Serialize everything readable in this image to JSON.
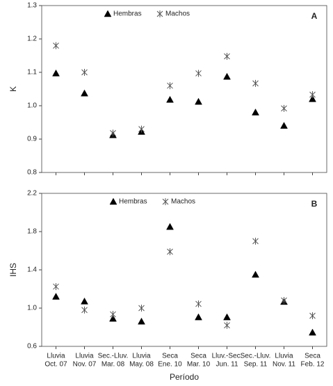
{
  "chart_data": [
    {
      "type": "scatter",
      "panel_label": "A",
      "y_label": "K",
      "ylim": [
        0.8,
        1.3
      ],
      "yticks": [
        0.8,
        0.9,
        {
          "value": 1,
          "label": "1.0"
        },
        1.1,
        1.2,
        1.3
      ],
      "legend": "upper center",
      "series": [
        {
          "name": "Hembras",
          "color": "#000000",
          "marker": "triangle",
          "values": [
            1.097,
            1.037,
            0.912,
            0.922,
            1.018,
            1.012,
            1.087,
            0.98,
            0.94,
            1.02
          ]
        },
        {
          "name": "Machos",
          "color": "#555555",
          "marker": "asterisk",
          "values": [
            1.18,
            1.1,
            0.918,
            0.93,
            1.06,
            1.097,
            1.148,
            1.067,
            0.992,
            1.033
          ]
        }
      ]
    },
    {
      "type": "scatter",
      "panel_label": "B",
      "y_label": "IHS",
      "x_label": "Período",
      "categories": [
        [
          "Lluvia",
          "Oct. 07"
        ],
        [
          "Lluvia",
          "Nov. 07"
        ],
        [
          "Sec.-Lluv.",
          "Mar. 08"
        ],
        [
          "Lluvia",
          "May. 08"
        ],
        [
          "Seca",
          "Ene. 10"
        ],
        [
          "Seca",
          "Mar. 10"
        ],
        [
          "Lluv.-Sec.",
          "Jun. 11"
        ],
        [
          "Sec.-Lluv.",
          "Sep. 11"
        ],
        [
          "Lluvia",
          "Nov. 11"
        ],
        [
          "Seca",
          "Feb. 12"
        ]
      ],
      "ylim": [
        0.6,
        2.2
      ],
      "yticks": [
        0.6,
        {
          "value": 1,
          "label": "1.0"
        },
        1.4,
        1.8,
        2.2
      ],
      "legend": "upper center",
      "series": [
        {
          "name": "Hembras",
          "color": "#000000",
          "marker": "triangle",
          "values": [
            1.12,
            1.07,
            0.89,
            0.86,
            1.85,
            0.905,
            0.905,
            1.35,
            1.066,
            0.745
          ]
        },
        {
          "name": "Machos",
          "color": "#555555",
          "marker": "asterisk",
          "values": [
            1.225,
            0.98,
            0.935,
            1.0,
            1.59,
            1.044,
            0.82,
            1.7,
            1.08,
            0.92
          ]
        }
      ]
    }
  ]
}
